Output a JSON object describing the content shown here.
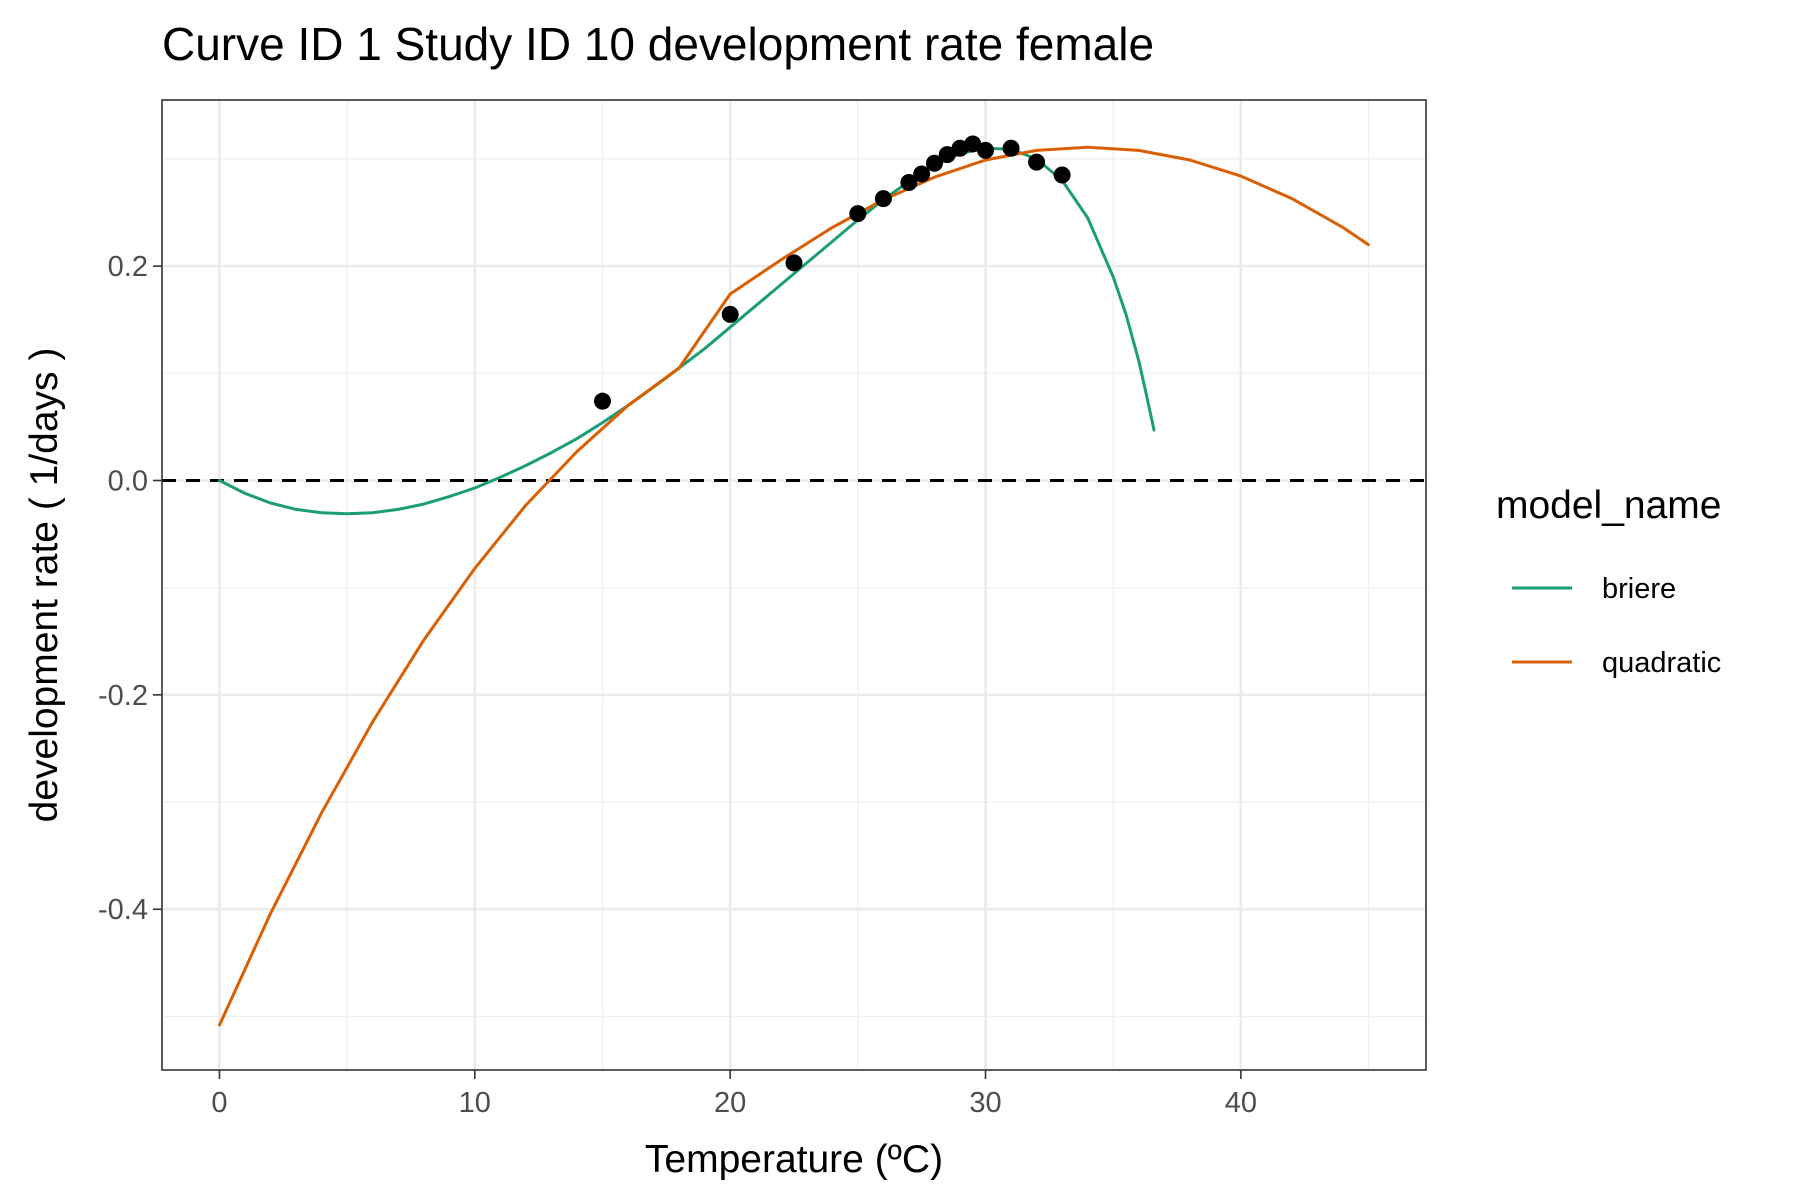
{
  "chart_data": {
    "type": "line",
    "title": "Curve ID 1 Study ID 10 development rate female",
    "xlabel": "Temperature (ºC)",
    "ylabel": "development rate ( 1/days )",
    "xlim": [
      -2.25,
      47.25
    ],
    "ylim": [
      -0.55,
      0.355
    ],
    "x_ticks": [
      0,
      10,
      20,
      30,
      40
    ],
    "x_tick_labels": [
      "0",
      "10",
      "20",
      "30",
      "40"
    ],
    "y_ticks": [
      -0.4,
      -0.2,
      0.0,
      0.2
    ],
    "y_tick_labels": [
      "-0.4",
      "-0.2",
      "0.0",
      "0.2"
    ],
    "grid": true,
    "reference_line": {
      "y": 0.0,
      "style": "dashed",
      "color": "#000000"
    },
    "legend": {
      "title": "model_name",
      "position": "right",
      "entries": [
        {
          "label": "briere",
          "color": "#1b9e77"
        },
        {
          "label": "quadratic",
          "color": "#d95f02"
        }
      ]
    },
    "series": [
      {
        "name": "briere",
        "color": "#1b9e77",
        "type": "line",
        "x": [
          0,
          1,
          2,
          3,
          4,
          5,
          6,
          7,
          8,
          9,
          10,
          11,
          12,
          13,
          14,
          15,
          16,
          17,
          18,
          19,
          20,
          21,
          22,
          23,
          24,
          25,
          26,
          27,
          28,
          29,
          30,
          31,
          32,
          33,
          34,
          35,
          35.5,
          36,
          36.3,
          36.6
        ],
        "y": [
          0.0,
          -0.012,
          -0.021,
          -0.027,
          -0.03,
          -0.031,
          -0.03,
          -0.027,
          -0.022,
          -0.015,
          -0.007,
          0.003,
          0.014,
          0.026,
          0.039,
          0.054,
          0.07,
          0.087,
          0.105,
          0.123,
          0.143,
          0.163,
          0.183,
          0.203,
          0.223,
          0.243,
          0.262,
          0.279,
          0.294,
          0.305,
          0.31,
          0.309,
          0.3,
          0.28,
          0.245,
          0.19,
          0.155,
          0.112,
          0.08,
          0.047
        ]
      },
      {
        "name": "quadratic",
        "color": "#d95f02",
        "type": "line",
        "x": [
          0,
          2,
          4,
          6,
          8,
          10,
          12,
          14,
          16,
          18,
          20,
          22,
          24,
          26,
          28,
          30,
          32,
          34,
          36,
          38,
          40,
          42,
          44,
          45
        ],
        "y": [
          -0.508,
          -0.404,
          -0.31,
          -0.225,
          -0.149,
          -0.082,
          -0.023,
          0.027,
          0.07,
          0.105,
          0.174,
          0.206,
          0.236,
          0.262,
          0.283,
          0.299,
          0.308,
          0.311,
          0.308,
          0.299,
          0.284,
          0.263,
          0.236,
          0.22
        ]
      }
    ],
    "points": {
      "color": "#000000",
      "x": [
        15,
        20,
        22.5,
        25,
        26,
        27,
        27.5,
        28,
        28.5,
        29,
        29.5,
        30,
        31,
        32,
        33
      ],
      "y": [
        0.074,
        0.155,
        0.203,
        0.249,
        0.263,
        0.278,
        0.286,
        0.296,
        0.304,
        0.31,
        0.314,
        0.308,
        0.31,
        0.297,
        0.285
      ]
    }
  }
}
